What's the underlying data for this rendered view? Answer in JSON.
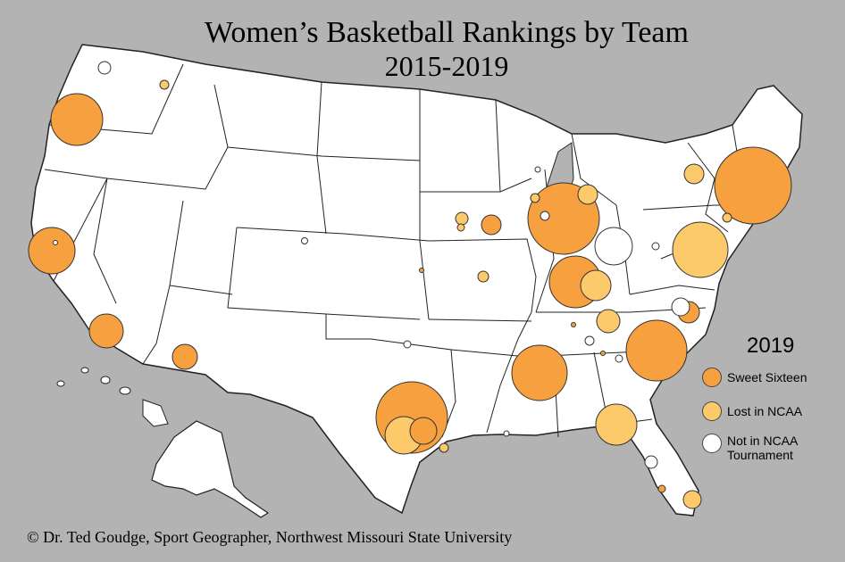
{
  "title": {
    "line1": "Women’s Basketball Rankings by Team",
    "line2": "2015-2019"
  },
  "legend": {
    "title": "2019",
    "items": [
      {
        "label": "Sweet Sixteen",
        "color": "#f7a040"
      },
      {
        "label": "Lost in NCAA",
        "color": "#fcc96b"
      },
      {
        "label": "Not in NCAA Tournament",
        "color": "#ffffff"
      }
    ]
  },
  "credit": "© Dr. Ted Goudge, Sport Geographer, Northwest Missouri State University",
  "colors": {
    "background": "#b3b3b3",
    "land": "#ffffff",
    "border": "#222222",
    "sweet_sixteen": "#f7a040",
    "lost_in_ncaa": "#fcc96b",
    "not_in_ncaa": "#ffffff"
  }
}
